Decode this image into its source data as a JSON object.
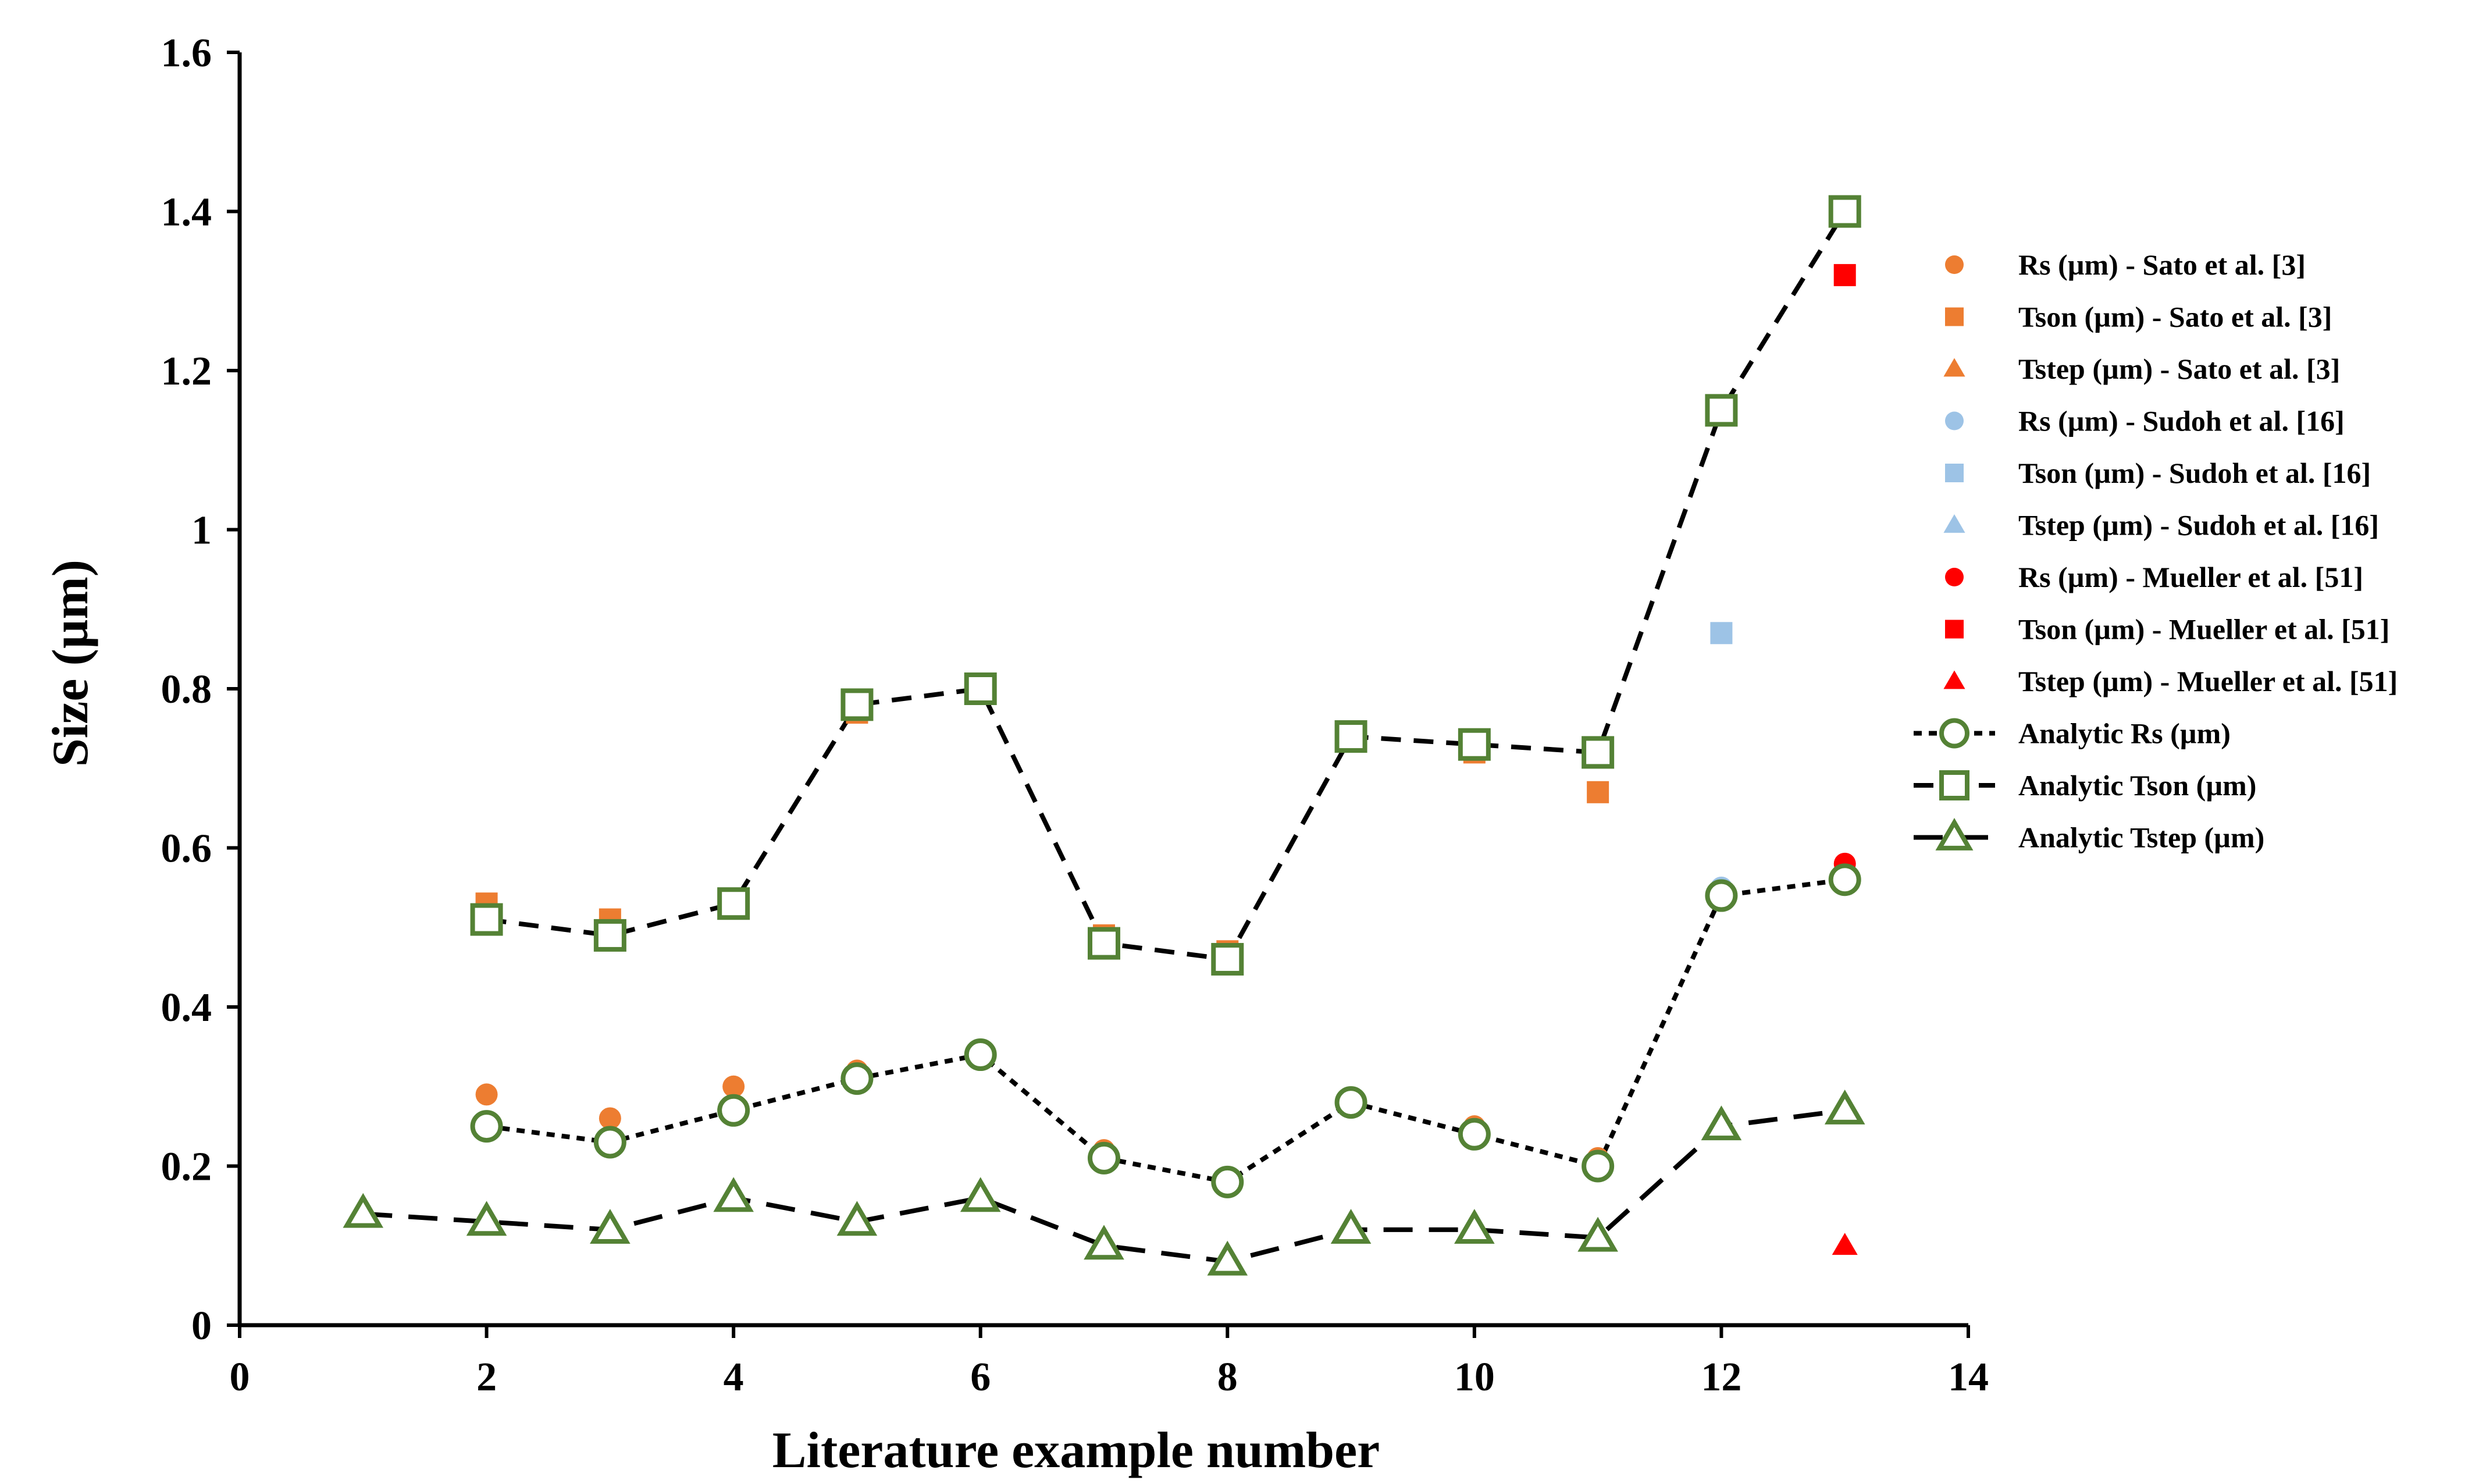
{
  "chart_data": {
    "type": "scatter",
    "xlabel": "Literature example number",
    "ylabel": "Size (µm)",
    "xlim": [
      0,
      14
    ],
    "ylim": [
      0,
      1.6
    ],
    "xticks": [
      "0",
      "2",
      "4",
      "6",
      "8",
      "10",
      "12",
      "14"
    ],
    "yticks": [
      "0",
      "0.2",
      "0.4",
      "0.6",
      "0.8",
      "1",
      "1.2",
      "1.4",
      "1.6"
    ],
    "grid": false,
    "legend_position": "right",
    "series": [
      {
        "name": "Rs (µm) - Sato et al. [3]",
        "marker": "circle",
        "color": "#ED7D31",
        "filled": true,
        "line": "none",
        "points": [
          [
            2,
            0.29
          ],
          [
            3,
            0.26
          ],
          [
            4,
            0.3
          ],
          [
            5,
            0.32
          ],
          [
            6,
            0.34
          ],
          [
            7,
            0.22
          ],
          [
            8,
            0.18
          ],
          [
            9,
            0.28
          ],
          [
            10,
            0.25
          ],
          [
            11,
            0.21
          ]
        ]
      },
      {
        "name": "Tson (µm) - Sato et al. [3]",
        "marker": "square",
        "color": "#ED7D31",
        "filled": true,
        "line": "none",
        "points": [
          [
            2,
            0.53
          ],
          [
            3,
            0.51
          ],
          [
            4,
            0.53
          ],
          [
            5,
            0.77
          ],
          [
            6,
            0.8
          ],
          [
            7,
            0.49
          ],
          [
            8,
            0.47
          ],
          [
            9,
            0.74
          ],
          [
            10,
            0.72
          ],
          [
            11,
            0.67
          ]
        ]
      },
      {
        "name": "Tstep (µm) - Sato et al. [3]",
        "marker": "triangle",
        "color": "#ED7D31",
        "filled": true,
        "line": "none",
        "points": []
      },
      {
        "name": "Rs (µm) - Sudoh et al. [16]",
        "marker": "circle",
        "color": "#9DC3E6",
        "filled": true,
        "line": "none",
        "points": [
          [
            12,
            0.55
          ]
        ]
      },
      {
        "name": "Tson (µm) - Sudoh et al. [16]",
        "marker": "square",
        "color": "#9DC3E6",
        "filled": true,
        "line": "none",
        "points": [
          [
            12,
            0.87
          ]
        ]
      },
      {
        "name": "Tstep (µm) - Sudoh et al. [16]",
        "marker": "triangle",
        "color": "#9DC3E6",
        "filled": true,
        "line": "none",
        "points": []
      },
      {
        "name": "Rs (µm) - Mueller et al. [51]",
        "marker": "circle",
        "color": "#FF0000",
        "filled": true,
        "line": "none",
        "points": [
          [
            13,
            0.58
          ]
        ]
      },
      {
        "name": "Tson (µm) - Mueller et al. [51]",
        "marker": "square",
        "color": "#FF0000",
        "filled": true,
        "line": "none",
        "points": [
          [
            13,
            1.32
          ]
        ]
      },
      {
        "name": "Tstep (µm) - Mueller et al. [51]",
        "marker": "triangle",
        "color": "#FF0000",
        "filled": true,
        "line": "none",
        "points": [
          [
            13,
            0.1
          ]
        ]
      },
      {
        "name": "Analytic Rs (µm)",
        "marker": "circle",
        "color": "#548235",
        "filled": false,
        "line": "dotted",
        "points": [
          [
            2,
            0.25
          ],
          [
            3,
            0.23
          ],
          [
            4,
            0.27
          ],
          [
            5,
            0.31
          ],
          [
            6,
            0.34
          ],
          [
            7,
            0.21
          ],
          [
            8,
            0.18
          ],
          [
            9,
            0.28
          ],
          [
            10,
            0.24
          ],
          [
            11,
            0.2
          ],
          [
            12,
            0.54
          ],
          [
            13,
            0.56
          ]
        ]
      },
      {
        "name": "Analytic Tson (µm)",
        "marker": "square",
        "color": "#548235",
        "filled": false,
        "line": "dashed",
        "points": [
          [
            2,
            0.51
          ],
          [
            3,
            0.49
          ],
          [
            4,
            0.53
          ],
          [
            5,
            0.78
          ],
          [
            6,
            0.8
          ],
          [
            7,
            0.48
          ],
          [
            8,
            0.46
          ],
          [
            9,
            0.74
          ],
          [
            10,
            0.73
          ],
          [
            11,
            0.72
          ],
          [
            12,
            1.15
          ],
          [
            13,
            1.4
          ]
        ]
      },
      {
        "name": "Analytic Tstep (µm)",
        "marker": "triangle",
        "color": "#548235",
        "filled": false,
        "line": "long-dashed",
        "points": [
          [
            1,
            0.14
          ],
          [
            2,
            0.13
          ],
          [
            3,
            0.12
          ],
          [
            4,
            0.16
          ],
          [
            5,
            0.13
          ],
          [
            6,
            0.16
          ],
          [
            7,
            0.1
          ],
          [
            8,
            0.08
          ],
          [
            9,
            0.12
          ],
          [
            10,
            0.12
          ],
          [
            11,
            0.11
          ],
          [
            12,
            0.25
          ],
          [
            13,
            0.27
          ]
        ]
      }
    ]
  }
}
